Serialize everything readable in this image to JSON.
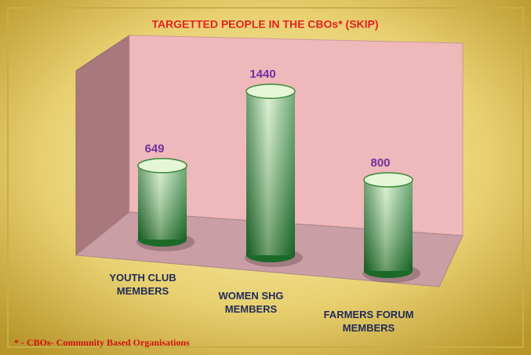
{
  "chart_data": {
    "type": "bar3d",
    "title": "TARGETTED PEOPLE  IN THE CBOs*  (SKIP)",
    "categories": [
      "YOUTH CLUB MEMBERS",
      "WOMEN SHG MEMBERS",
      "FARMERS FORUM MEMBERS"
    ],
    "values": [
      649,
      1440,
      800
    ],
    "color": "#2e8b3a",
    "footnote": "* - CBOs- Community Based Organisations"
  }
}
